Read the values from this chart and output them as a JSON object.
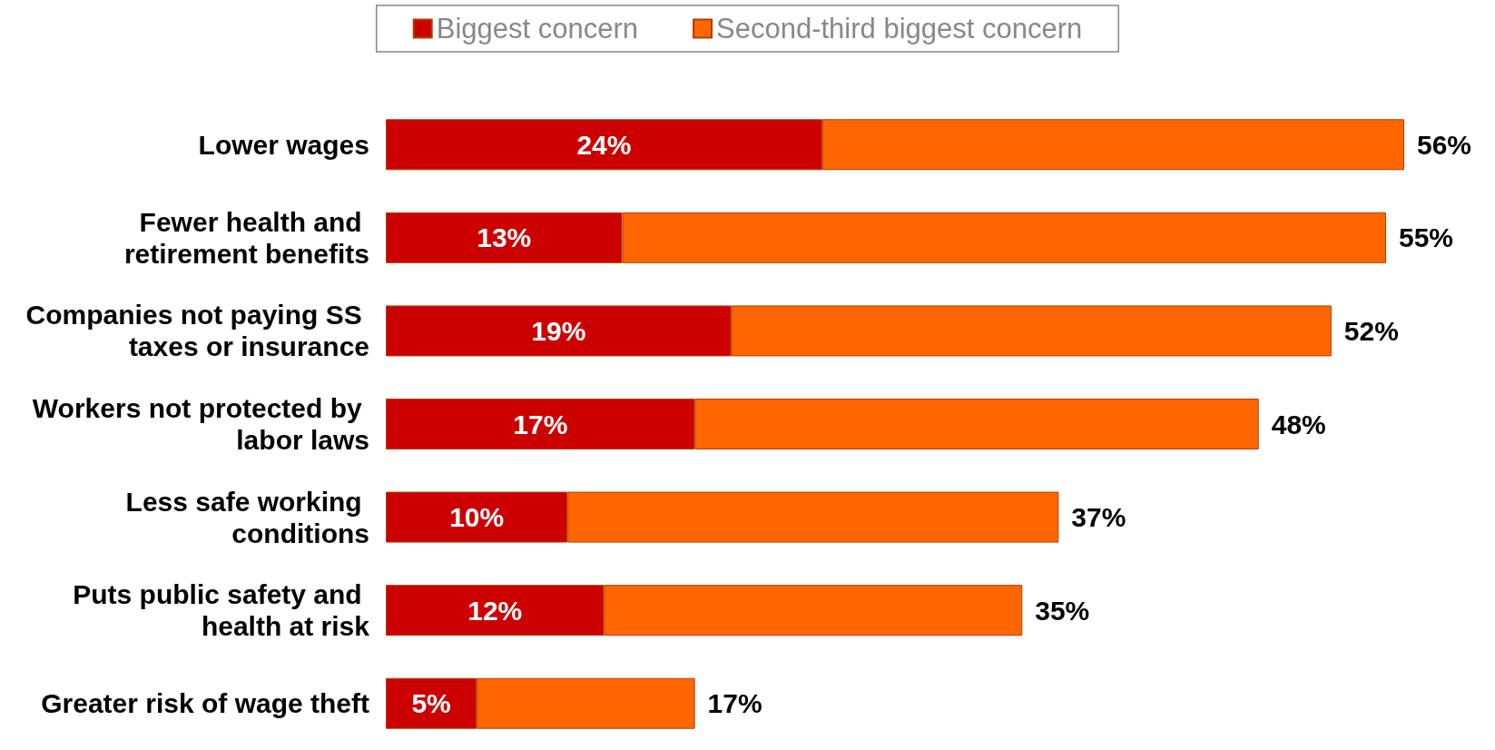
{
  "chart_data": {
    "type": "bar",
    "orientation": "horizontal",
    "stacked": true,
    "legend": "top",
    "categories": [
      "Lower wages",
      "Fewer health and retirement benefits",
      "Companies not paying SS taxes or insurance",
      "Workers not protected by labor laws",
      "Less safe working conditions",
      "Puts public safety and health at risk",
      "Greater risk of wage theft"
    ],
    "series": [
      {
        "name": "Biggest concern",
        "color": "#cc0000",
        "values": [
          24,
          13,
          19,
          17,
          10,
          12,
          5
        ],
        "value_labels": [
          "24%",
          "13%",
          "19%",
          "17%",
          "10%",
          "12%",
          "5%"
        ]
      },
      {
        "name": "Second-third biggest concern",
        "color": "#ff6600",
        "values": [
          32,
          42,
          33,
          31,
          27,
          23,
          12
        ]
      }
    ],
    "totals": [
      "56%",
      "55%",
      "52%",
      "48%",
      "37%",
      "35%",
      "17%"
    ]
  }
}
